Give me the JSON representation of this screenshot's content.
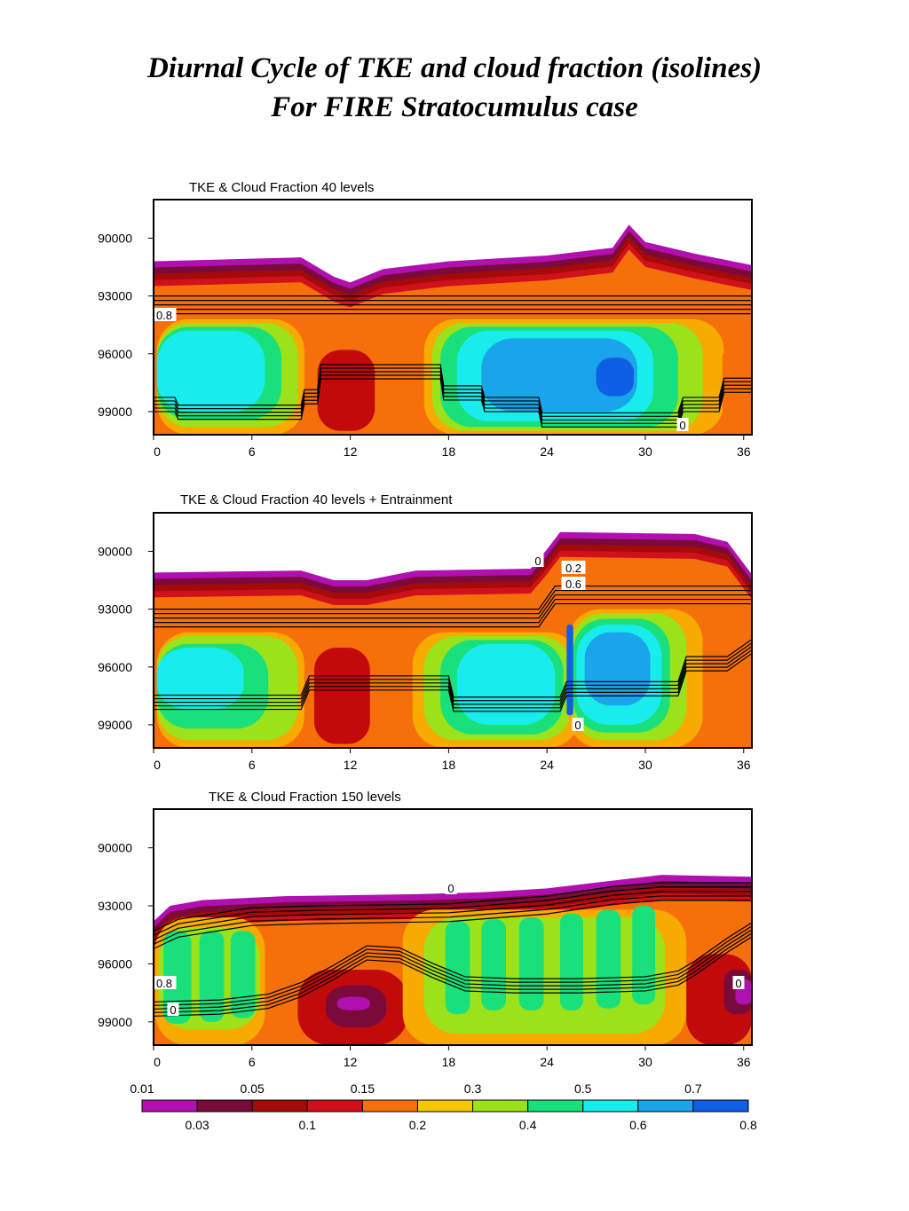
{
  "title": {
    "line1": "Diurnal Cycle of TKE and cloud fraction (isolines)",
    "line2": "For FIRE Stratocumulus case"
  },
  "chart_data": [
    {
      "type": "heatmap",
      "title": "TKE & Cloud Fraction 40 levels",
      "x_ticks": [
        0,
        6,
        12,
        18,
        24,
        30,
        36
      ],
      "y_ticks": [
        90000,
        93000,
        96000,
        99000
      ],
      "xlim": [
        0,
        36.5
      ],
      "ylim": [
        88000,
        100200
      ],
      "y_inverted": true,
      "pbl_top": [
        [
          0,
          91200
        ],
        [
          9,
          91000
        ],
        [
          11,
          92000
        ],
        [
          12,
          92300
        ],
        [
          14,
          91600
        ],
        [
          18,
          91200
        ],
        [
          24,
          90900
        ],
        [
          28,
          90500
        ],
        [
          29,
          89300
        ],
        [
          30,
          90200
        ],
        [
          33,
          90800
        ],
        [
          36.5,
          91400
        ]
      ],
      "cloud_fraction_top": [
        [
          0,
          93000
        ],
        [
          36.5,
          93000
        ]
      ],
      "cloud_fraction_base": [
        [
          0,
          99000
        ],
        [
          1.3,
          99000
        ],
        [
          1.5,
          99400
        ],
        [
          9,
          99400
        ],
        [
          9.2,
          98600
        ],
        [
          10,
          98600
        ],
        [
          10.2,
          97300
        ],
        [
          17.5,
          97300
        ],
        [
          17.7,
          98400
        ],
        [
          20,
          98400
        ],
        [
          20.2,
          99000
        ],
        [
          23.5,
          99000
        ],
        [
          23.7,
          99800
        ],
        [
          32,
          99800
        ],
        [
          32.3,
          99000
        ],
        [
          34.5,
          99000
        ],
        [
          34.8,
          98000
        ],
        [
          36.5,
          98000
        ]
      ],
      "contour_labels": [
        "0.8",
        "0"
      ],
      "bands": [
        {
          "x0": 0.2,
          "x1": 9.2,
          "y0": 94200,
          "y1": 100200,
          "level": 0.2,
          "color": "#f7aa00"
        },
        {
          "x0": 0.2,
          "x1": 8.8,
          "y0": 94400,
          "y1": 99800,
          "level": 0.3,
          "color": "#9be21a"
        },
        {
          "x0": 0.2,
          "x1": 7.8,
          "y0": 94600,
          "y1": 99400,
          "level": 0.4,
          "color": "#19e07a"
        },
        {
          "x0": 0.2,
          "x1": 6.8,
          "y0": 94800,
          "y1": 99000,
          "level": 0.5,
          "color": "#19ecec"
        },
        {
          "x0": 10,
          "x1": 13.5,
          "y0": 95800,
          "y1": 100000,
          "level": 0.1,
          "color": "#c20a0a"
        },
        {
          "x0": 16.5,
          "x1": 34.8,
          "y0": 94200,
          "y1": 100200,
          "level": 0.2,
          "color": "#f7aa00"
        },
        {
          "x0": 17,
          "x1": 33.5,
          "y0": 94400,
          "y1": 100000,
          "level": 0.3,
          "color": "#9be21a"
        },
        {
          "x0": 17.5,
          "x1": 32,
          "y0": 94600,
          "y1": 99800,
          "level": 0.4,
          "color": "#19e07a"
        },
        {
          "x0": 18.5,
          "x1": 30.5,
          "y0": 94800,
          "y1": 99500,
          "level": 0.5,
          "color": "#19ecec"
        },
        {
          "x0": 20,
          "x1": 29.5,
          "y0": 95200,
          "y1": 99000,
          "level": 0.6,
          "color": "#1aa4ea"
        },
        {
          "x0": 27,
          "x1": 29.3,
          "y0": 96200,
          "y1": 98200,
          "level": 0.7,
          "color": "#0f5ee6"
        },
        {
          "x0": 34.7,
          "x1": 36.5,
          "y0": 95600,
          "y1": 100200,
          "level": 0.15,
          "color": "#f56f0a"
        }
      ]
    },
    {
      "type": "heatmap",
      "title": "TKE & Cloud Fraction 40 levels + Entrainment",
      "x_ticks": [
        0,
        6,
        12,
        18,
        24,
        30,
        36
      ],
      "y_ticks": [
        90000,
        93000,
        96000,
        99000
      ],
      "xlim": [
        0,
        36.5
      ],
      "ylim": [
        88000,
        100200
      ],
      "y_inverted": true,
      "pbl_top": [
        [
          0,
          91100
        ],
        [
          9,
          91000
        ],
        [
          11,
          91500
        ],
        [
          13,
          91500
        ],
        [
          16,
          91000
        ],
        [
          23,
          90900
        ],
        [
          24,
          89900
        ],
        [
          24.8,
          89000
        ],
        [
          33,
          89100
        ],
        [
          35,
          89500
        ],
        [
          36.5,
          91200
        ]
      ],
      "cloud_fraction_top": [
        [
          0,
          93000
        ],
        [
          23.5,
          93000
        ],
        [
          24.5,
          91800
        ],
        [
          36.5,
          91800
        ]
      ],
      "cloud_fraction_base": [
        [
          0,
          98200
        ],
        [
          9,
          98200
        ],
        [
          9.5,
          97200
        ],
        [
          18,
          97200
        ],
        [
          18.3,
          98300
        ],
        [
          24.8,
          98300
        ],
        [
          25.2,
          97500
        ],
        [
          32,
          97500
        ],
        [
          32.5,
          96200
        ],
        [
          35,
          96200
        ],
        [
          36.5,
          95300
        ]
      ],
      "contour_labels": [
        "0",
        "0.2",
        "0.6",
        "0"
      ],
      "bands": [
        {
          "x0": 0.2,
          "x1": 9.2,
          "y0": 94200,
          "y1": 100200,
          "level": 0.2,
          "color": "#f7aa00"
        },
        {
          "x0": 0.2,
          "x1": 8.8,
          "y0": 94400,
          "y1": 99800,
          "level": 0.3,
          "color": "#9be21a"
        },
        {
          "x0": 0.2,
          "x1": 7,
          "y0": 94800,
          "y1": 99200,
          "level": 0.4,
          "color": "#19e07a"
        },
        {
          "x0": 0.2,
          "x1": 5.5,
          "y0": 95000,
          "y1": 98200,
          "level": 0.5,
          "color": "#19ecec"
        },
        {
          "x0": 9.8,
          "x1": 13.2,
          "y0": 95000,
          "y1": 100000,
          "level": 0.1,
          "color": "#c20a0a"
        },
        {
          "x0": 15.8,
          "x1": 26,
          "y0": 94200,
          "y1": 100200,
          "level": 0.2,
          "color": "#f7aa00"
        },
        {
          "x0": 16.5,
          "x1": 25.5,
          "y0": 94400,
          "y1": 99800,
          "level": 0.3,
          "color": "#9be21a"
        },
        {
          "x0": 17.5,
          "x1": 25,
          "y0": 94600,
          "y1": 99500,
          "level": 0.4,
          "color": "#19e07a"
        },
        {
          "x0": 18.5,
          "x1": 24.5,
          "y0": 94800,
          "y1": 99000,
          "level": 0.5,
          "color": "#19ecec"
        },
        {
          "x0": 25.3,
          "x1": 33.5,
          "y0": 93000,
          "y1": 100200,
          "level": 0.2,
          "color": "#f7aa00"
        },
        {
          "x0": 25.5,
          "x1": 32.5,
          "y0": 93200,
          "y1": 99800,
          "level": 0.3,
          "color": "#9be21a"
        },
        {
          "x0": 25.6,
          "x1": 31.5,
          "y0": 93500,
          "y1": 99400,
          "level": 0.4,
          "color": "#19e07a"
        },
        {
          "x0": 25.8,
          "x1": 31,
          "y0": 93800,
          "y1": 99000,
          "level": 0.5,
          "color": "#19ecec"
        },
        {
          "x0": 26.3,
          "x1": 30.3,
          "y0": 94200,
          "y1": 98000,
          "level": 0.6,
          "color": "#1aa4ea"
        },
        {
          "x0": 25.2,
          "x1": 25.6,
          "y0": 93800,
          "y1": 98500,
          "level": 0.7,
          "color": "#0f5ee6"
        },
        {
          "x0": 34.2,
          "x1": 36.5,
          "y0": 96500,
          "y1": 100200,
          "level": 0.15,
          "color": "#f56f0a"
        }
      ]
    },
    {
      "type": "heatmap",
      "title": "TKE & Cloud Fraction 150 levels",
      "x_ticks": [
        0,
        6,
        12,
        18,
        24,
        30,
        36
      ],
      "y_ticks": [
        90000,
        93000,
        96000,
        99000
      ],
      "xlim": [
        0,
        36.5
      ],
      "ylim": [
        88000,
        100200
      ],
      "y_inverted": true,
      "pbl_top": [
        [
          0,
          93800
        ],
        [
          1,
          93000
        ],
        [
          3,
          92700
        ],
        [
          8,
          92500
        ],
        [
          16,
          92400
        ],
        [
          20,
          92300
        ],
        [
          24,
          92100
        ],
        [
          28,
          91700
        ],
        [
          31,
          91400
        ],
        [
          36.5,
          91500
        ]
      ],
      "cloud_fraction_top": [
        [
          0,
          94300
        ],
        [
          1.5,
          93700
        ],
        [
          3,
          93500
        ],
        [
          6,
          93100
        ],
        [
          10,
          93000
        ],
        [
          18,
          92900
        ],
        [
          24,
          92500
        ],
        [
          28,
          92000
        ],
        [
          31,
          91800
        ],
        [
          36.5,
          91800
        ]
      ],
      "cloud_fraction_base": [
        [
          0,
          98700
        ],
        [
          4,
          98600
        ],
        [
          7,
          98300
        ],
        [
          9,
          97700
        ],
        [
          11,
          96800
        ],
        [
          13,
          95800
        ],
        [
          15,
          95900
        ],
        [
          17,
          96700
        ],
        [
          19,
          97400
        ],
        [
          22,
          97500
        ],
        [
          26,
          97500
        ],
        [
          30,
          97400
        ],
        [
          32,
          97100
        ],
        [
          33,
          96600
        ],
        [
          35,
          95400
        ],
        [
          36.5,
          94600
        ]
      ],
      "contour_labels": [
        "0",
        "0.8",
        "0",
        "0"
      ],
      "bands": [
        {
          "x0": 0.1,
          "x1": 6.8,
          "y0": 93600,
          "y1": 100200,
          "level": 0.2,
          "color": "#f7aa00"
        },
        {
          "x0": 0.3,
          "x1": 6.5,
          "y0": 94100,
          "y1": 99400,
          "level": 0.3,
          "color": "#9be21a"
        },
        {
          "x0": 0.6,
          "x1": 2.3,
          "y0": 94300,
          "y1": 99100,
          "level": 0.4,
          "color": "#19e07a"
        },
        {
          "x0": 2.8,
          "x1": 4.3,
          "y0": 94300,
          "y1": 99000,
          "level": 0.4,
          "color": "#19e07a"
        },
        {
          "x0": 4.7,
          "x1": 6.2,
          "y0": 94300,
          "y1": 98800,
          "level": 0.4,
          "color": "#19e07a"
        },
        {
          "x0": 6.8,
          "x1": 7.8,
          "y0": 93900,
          "y1": 100200,
          "level": 0.15,
          "color": "#f56f0a"
        },
        {
          "x0": 8.8,
          "x1": 15.5,
          "y0": 96300,
          "y1": 100200,
          "level": 0.1,
          "color": "#c20a0a"
        },
        {
          "x0": 10.5,
          "x1": 14.2,
          "y0": 97100,
          "y1": 99300,
          "level": 0.05,
          "color": "#7a0a3a"
        },
        {
          "x0": 11.2,
          "x1": 13.2,
          "y0": 97700,
          "y1": 98400,
          "level": 0.03,
          "color": "#b20fb0"
        },
        {
          "x0": 15.2,
          "x1": 32.5,
          "y0": 93200,
          "y1": 100200,
          "level": 0.2,
          "color": "#f7aa00"
        },
        {
          "x0": 16.5,
          "x1": 31.2,
          "y0": 93600,
          "y1": 99600,
          "level": 0.3,
          "color": "#9be21a"
        },
        {
          "x0": 17.8,
          "x1": 19.3,
          "y0": 93800,
          "y1": 98600,
          "level": 0.4,
          "color": "#19e07a"
        },
        {
          "x0": 20,
          "x1": 21.5,
          "y0": 93700,
          "y1": 98400,
          "level": 0.4,
          "color": "#19e07a"
        },
        {
          "x0": 22.3,
          "x1": 23.8,
          "y0": 93600,
          "y1": 98400,
          "level": 0.4,
          "color": "#19e07a"
        },
        {
          "x0": 24.8,
          "x1": 26.2,
          "y0": 93400,
          "y1": 98400,
          "level": 0.4,
          "color": "#19e07a"
        },
        {
          "x0": 27,
          "x1": 28.5,
          "y0": 93200,
          "y1": 98300,
          "level": 0.4,
          "color": "#19e07a"
        },
        {
          "x0": 29.2,
          "x1": 30.6,
          "y0": 93000,
          "y1": 98100,
          "level": 0.4,
          "color": "#19e07a"
        },
        {
          "x0": 32.5,
          "x1": 36.5,
          "y0": 95500,
          "y1": 100200,
          "level": 0.1,
          "color": "#c20a0a"
        },
        {
          "x0": 34.8,
          "x1": 36.5,
          "y0": 96300,
          "y1": 98600,
          "level": 0.05,
          "color": "#7a0a3a"
        },
        {
          "x0": 35.5,
          "x1": 36.5,
          "y0": 96800,
          "y1": 98100,
          "level": 0.03,
          "color": "#b20fb0"
        }
      ]
    }
  ],
  "colorbar": {
    "top_labels": [
      "0.01",
      "0.05",
      "0.15",
      "0.3",
      "0.5",
      "0.7"
    ],
    "bottom_labels": [
      "0.03",
      "0.1",
      "0.2",
      "0.4",
      "0.6",
      "0.8"
    ],
    "colors": [
      "#b20fb0",
      "#7a0a3a",
      "#a50a0a",
      "#d0101a",
      "#f56f0a",
      "#f7c800",
      "#9be21a",
      "#19e07a",
      "#19ecec",
      "#1aa4ea",
      "#0f5ee6"
    ]
  }
}
